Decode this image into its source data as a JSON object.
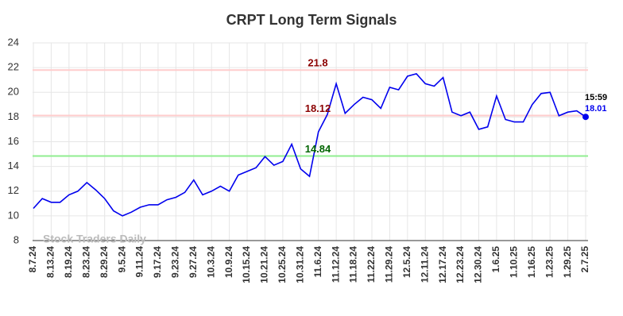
{
  "chart_data": {
    "type": "line",
    "title": "CRPT Long Term Signals",
    "watermark": "Stock Traders Daily",
    "categories": [
      "8.7.24",
      null,
      "8.13.24",
      null,
      "8.19.24",
      null,
      "8.23.24",
      null,
      "8.29.24",
      null,
      "9.5.24",
      null,
      "9.11.24",
      null,
      "9.17.24",
      null,
      "9.23.24",
      null,
      "9.27.24",
      null,
      "10.3.24",
      null,
      "10.9.24",
      null,
      "10.15.24",
      null,
      "10.21.24",
      null,
      "10.25.24",
      null,
      "10.31.24",
      null,
      "11.6.24",
      null,
      "11.12.24",
      null,
      "11.18.24",
      null,
      "11.22.24",
      null,
      "11.29.24",
      null,
      "12.5.24",
      null,
      "12.11.24",
      null,
      "12.17.24",
      null,
      "12.23.24",
      null,
      "12.30.24",
      null,
      "1.6.25",
      null,
      "1.10.25",
      null,
      "1.16.25",
      null,
      "1.23.25",
      null,
      "1.29.25",
      null,
      "2.7.25"
    ],
    "values": [
      10.6,
      11.4,
      11.1,
      11.1,
      11.7,
      12.0,
      12.7,
      12.1,
      11.4,
      10.4,
      10.0,
      10.3,
      10.7,
      10.9,
      10.9,
      11.3,
      11.5,
      11.9,
      12.9,
      11.7,
      12.0,
      12.4,
      12.0,
      13.3,
      13.6,
      13.9,
      14.8,
      14.1,
      14.4,
      15.8,
      13.8,
      13.2,
      16.8,
      18.2,
      20.7,
      18.3,
      19.0,
      19.6,
      19.4,
      18.7,
      20.4,
      20.2,
      21.3,
      21.5,
      20.7,
      20.5,
      21.2,
      18.4,
      18.1,
      18.4,
      17.0,
      17.2,
      19.7,
      17.8,
      17.6,
      17.6,
      19.0,
      19.9,
      20.0,
      18.1,
      18.4,
      18.5,
      18.01
    ],
    "color": "#0000ee",
    "last_time": "15:59",
    "hlines": [
      {
        "value": 21.8,
        "color": "#ffcccc",
        "label_color": "#8b0000"
      },
      {
        "value": 18.12,
        "color": "#ffcccc",
        "label_color": "#8b0000"
      },
      {
        "value": 14.84,
        "color": "#90ee90",
        "label_color": "#006400"
      }
    ],
    "ylim": [
      8,
      24
    ],
    "yticks": [
      8,
      10,
      12,
      14,
      16,
      18,
      20,
      22,
      24
    ],
    "grid": true
  }
}
